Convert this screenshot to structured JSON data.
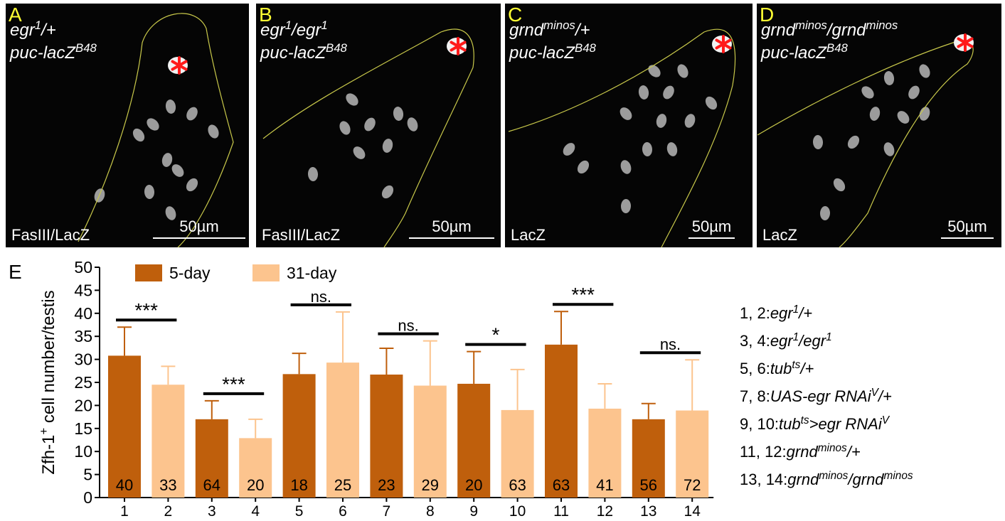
{
  "panels": [
    {
      "letter": "A",
      "genotype": [
        [
          "egr",
          {
            "sup": "1"
          },
          "/+"
        ],
        [
          "puc-lacZ",
          {
            "sup": "B48"
          }
        ]
      ],
      "stain": "FasIII/LacZ",
      "scale": "50µm"
    },
    {
      "letter": "B",
      "genotype": [
        [
          "egr",
          {
            "sup": "1"
          },
          "/egr",
          {
            "sup": "1"
          }
        ],
        [
          "puc-lacZ",
          {
            "sup": "B48"
          }
        ]
      ],
      "stain": "FasIII/LacZ",
      "scale": "50µm"
    },
    {
      "letter": "C",
      "genotype": [
        [
          "grnd",
          {
            "sup": "minos"
          },
          "/+"
        ],
        [
          "puc-lacZ",
          {
            "sup": "B48"
          }
        ]
      ],
      "stain": "LacZ",
      "scale": "50µm"
    },
    {
      "letter": "D",
      "genotype": [
        [
          "grnd",
          {
            "sup": "minos"
          },
          "/grnd",
          {
            "sup": "minos"
          }
        ],
        [
          "puc-lacZ",
          {
            "sup": "B48"
          }
        ]
      ],
      "stain": "LacZ",
      "scale": "50µm"
    }
  ],
  "chart_data": {
    "type": "bar",
    "panel_letter": "E",
    "y_label": [
      "Zfh-1",
      {
        "sup": "+"
      },
      " cell number/testis"
    ],
    "categories": [
      "1",
      "2",
      "3",
      "4",
      "5",
      "6",
      "7",
      "8",
      "9",
      "10",
      "11",
      "12",
      "13",
      "14"
    ],
    "series": [
      {
        "name": "5-day",
        "color": "#bf5f0c",
        "values": [
          30.8,
          null,
          17,
          null,
          26.8,
          null,
          26.7,
          null,
          24.7,
          null,
          33.2,
          null,
          17,
          null
        ],
        "errors": [
          6.2,
          null,
          4,
          null,
          4.5,
          null,
          5.7,
          null,
          7,
          null,
          7.2,
          null,
          3.4,
          null
        ]
      },
      {
        "name": "31-day",
        "color": "#fcc48e",
        "values": [
          null,
          24.5,
          null,
          12.9,
          null,
          29.3,
          null,
          24.3,
          null,
          19,
          null,
          19.3,
          null,
          18.9
        ],
        "errors": [
          null,
          4,
          null,
          4.1,
          null,
          11,
          null,
          9.7,
          null,
          8.8,
          null,
          5.4,
          null,
          11
        ]
      }
    ],
    "sample_sizes": [
      40,
      33,
      64,
      20,
      18,
      25,
      23,
      29,
      20,
      63,
      63,
      41,
      56,
      72
    ],
    "significance": [
      {
        "label": "***",
        "pair": [
          "1",
          "2"
        ]
      },
      {
        "label": "***",
        "pair": [
          "3",
          "4"
        ]
      },
      {
        "label": "ns.",
        "pair": [
          "5",
          "6"
        ]
      },
      {
        "label": "ns.",
        "pair": [
          "7",
          "8"
        ]
      },
      {
        "label": "*",
        "pair": [
          "9",
          "10"
        ]
      },
      {
        "label": "***",
        "pair": [
          "11",
          "12"
        ]
      },
      {
        "label": "ns.",
        "pair": [
          "13",
          "14"
        ]
      }
    ],
    "ylim": [
      0,
      50
    ],
    "yticks": [
      0,
      5,
      10,
      15,
      20,
      25,
      30,
      35,
      40,
      45,
      50
    ],
    "key": [
      {
        "ids": "1, 2:",
        "genotype": [
          "egr",
          {
            "sup": "1"
          },
          "/+"
        ]
      },
      {
        "ids": "3, 4:",
        "genotype": [
          "egr",
          {
            "sup": "1"
          },
          "/egr",
          {
            "sup": "1"
          }
        ]
      },
      {
        "ids": "5, 6:",
        "genotype": [
          "tub",
          {
            "sup": "ts"
          },
          "/+"
        ]
      },
      {
        "ids": "7, 8:",
        "genotype": [
          "UAS-egr RNAi",
          {
            "sup": "V"
          },
          "/+"
        ]
      },
      {
        "ids": "9, 10:",
        "genotype": [
          "tub",
          {
            "sup": "ts"
          },
          ">egr RNAi",
          {
            "sup": "V"
          }
        ]
      },
      {
        "ids": "11, 12:",
        "genotype": [
          "grnd",
          {
            "sup": "minos"
          },
          "/+"
        ]
      },
      {
        "ids": "13, 14:",
        "genotype": [
          "grnd",
          {
            "sup": "minos"
          },
          "/grnd",
          {
            "sup": "minos"
          }
        ]
      }
    ]
  }
}
